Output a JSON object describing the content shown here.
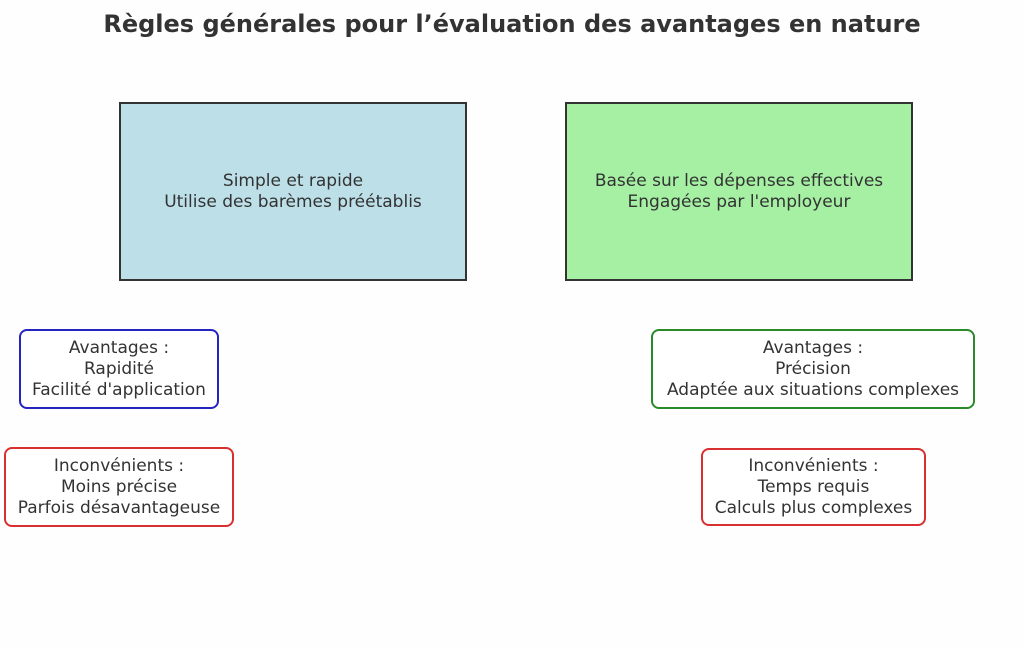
{
  "title": "Règles générales pour l’évaluation des avantages en nature",
  "colors": {
    "method_left_fill": "#bddfe8",
    "method_right_fill": "#a6f0a4",
    "left_advantages_border": "#2424c0",
    "right_advantages_border": "#2a8a2a",
    "disadvantages_border": "#d83030"
  },
  "left": {
    "method": [
      "Simple et rapide",
      "Utilise des barèmes préétablis"
    ],
    "advantages": [
      "Avantages :",
      "Rapidité",
      "Facilité d'application"
    ],
    "disadvantages": [
      "Inconvénients :",
      "Moins précise",
      "Parfois désavantageuse"
    ]
  },
  "right": {
    "method": [
      "Basée sur les dépenses effectives",
      "Engagées par l'employeur"
    ],
    "advantages": [
      "Avantages :",
      "Précision",
      "Adaptée aux situations complexes"
    ],
    "disadvantages": [
      "Inconvénients :",
      "Temps requis",
      "Calculs plus complexes"
    ]
  }
}
